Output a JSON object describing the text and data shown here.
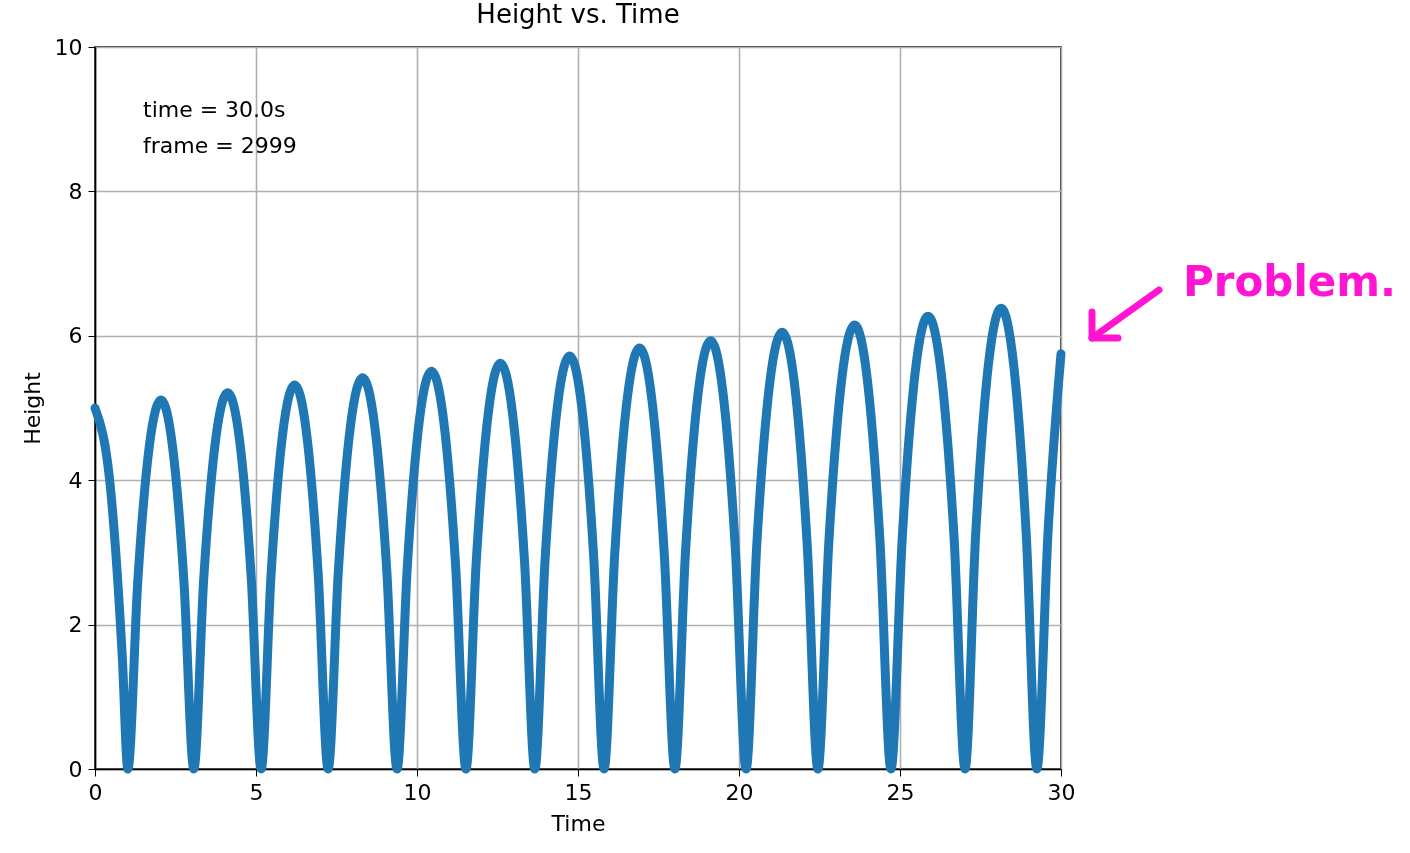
{
  "chart_data": {
    "type": "line",
    "title": "Height vs. Time",
    "xlabel": "Time",
    "ylabel": "Height",
    "xlim": [
      0,
      30
    ],
    "xticks": [
      0,
      5,
      10,
      15,
      20,
      25,
      30
    ],
    "ylim": [
      0,
      10
    ],
    "yticks": [
      0,
      2,
      4,
      6,
      8,
      10
    ],
    "grid": true,
    "annotations": [
      "time = 30.0s",
      "frame = 2999",
      "Problem."
    ],
    "series": [
      {
        "color": "#1f77b4",
        "x": [
          0,
          0.5,
          0.85,
          1.02,
          1.33,
          2.05,
          2.76,
          3.07,
          3.38,
          4.12,
          4.85,
          5.16,
          5.47,
          6.2,
          6.93,
          7.24,
          7.56,
          8.31,
          9.06,
          9.38,
          9.7,
          10.45,
          11.2,
          11.52,
          11.84,
          12.59,
          13.34,
          13.66,
          13.98,
          14.74,
          15.49,
          15.81,
          16.14,
          16.91,
          17.68,
          18.01,
          18.34,
          19.12,
          19.89,
          20.22,
          20.55,
          21.34,
          22.12,
          22.45,
          22.79,
          23.59,
          24.38,
          24.72,
          25.07,
          25.87,
          26.68,
          27.02,
          27.35,
          28.14,
          28.92,
          29.25,
          29.6,
          30
        ],
        "values": [
          5.0,
          3.8,
          1.53,
          0,
          2.61,
          5.11,
          2.61,
          0,
          2.66,
          5.21,
          2.66,
          0,
          2.71,
          5.32,
          2.71,
          0,
          2.76,
          5.42,
          2.76,
          0,
          2.81,
          5.51,
          2.81,
          0,
          2.87,
          5.62,
          2.87,
          0,
          2.92,
          5.72,
          2.92,
          0,
          2.97,
          5.83,
          2.97,
          0,
          3.02,
          5.93,
          3.02,
          0,
          3.09,
          6.05,
          3.09,
          0,
          3.14,
          6.15,
          3.14,
          0,
          3.2,
          6.27,
          3.2,
          0,
          3.25,
          6.38,
          3.25,
          0,
          3.3,
          5.75
        ]
      }
    ]
  }
}
